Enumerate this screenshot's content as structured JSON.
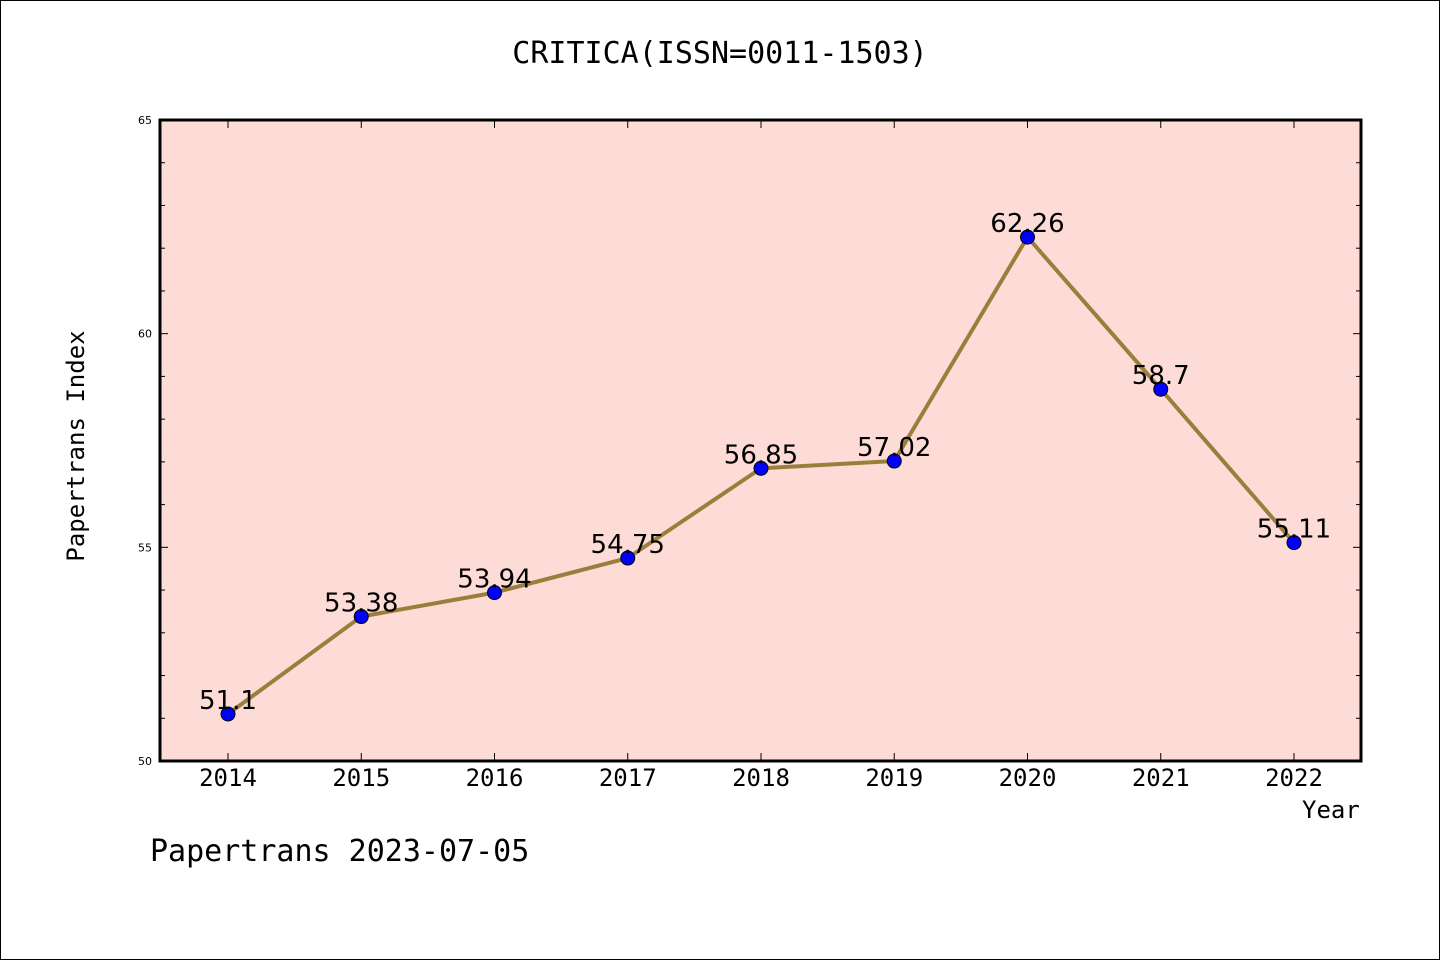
{
  "chart_data": {
    "type": "line",
    "title": "CRITICA(ISSN=0011-1503)",
    "xlabel": "Year",
    "ylabel": "Papertrans Index",
    "categories": [
      "2014",
      "2015",
      "2016",
      "2017",
      "2018",
      "2019",
      "2020",
      "2021",
      "2022"
    ],
    "series": [
      {
        "values": [
          51.1,
          53.38,
          53.94,
          54.75,
          56.85,
          57.02,
          62.26,
          58.7,
          55.11
        ],
        "labels": [
          "51.1",
          "53.38",
          "53.94",
          "54.75",
          "56.85",
          "57.02",
          "62.26",
          "58.7",
          "55.11"
        ],
        "line_color": "#9a7f3c",
        "marker_color": "#0000ff"
      }
    ],
    "ylim": [
      50,
      65
    ],
    "yticks": [
      "50",
      "55",
      "60",
      "65"
    ],
    "plot_background": "#fddcd8",
    "grid": false,
    "legend": "none"
  },
  "footer": "Papertrans 2023-07-05"
}
